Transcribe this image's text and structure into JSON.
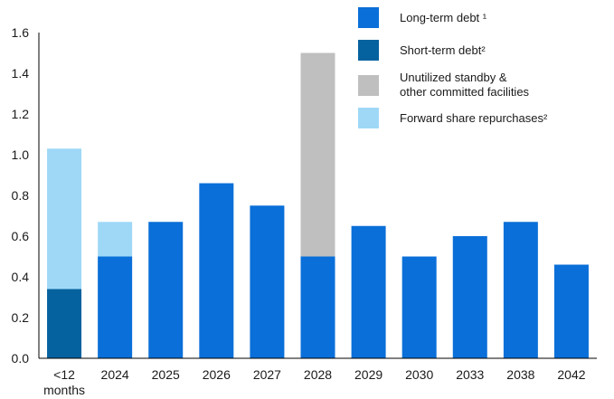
{
  "chart_data": {
    "type": "bar",
    "stacked": true,
    "categories": [
      "<12\nmonths",
      "2024",
      "2025",
      "2026",
      "2027",
      "2028",
      "2029",
      "2030",
      "2033",
      "2038",
      "2042"
    ],
    "series": [
      {
        "name": "Long-term debt ¹",
        "color": "#0a6fd8",
        "values": [
          0,
          0.5,
          0.67,
          0.86,
          0.75,
          0.5,
          0.65,
          0.5,
          0.6,
          0.67,
          0.46
        ]
      },
      {
        "name": "Short-term debt²",
        "color": "#06629f",
        "values": [
          0.34,
          0,
          0,
          0,
          0,
          0,
          0,
          0,
          0,
          0,
          0
        ]
      },
      {
        "name": "Unutilized standby &\nother committed facilities",
        "color": "#bfbfbf",
        "values": [
          0,
          0,
          0,
          0,
          0,
          1.0,
          0,
          0,
          0,
          0,
          0
        ]
      },
      {
        "name": "Forward share repurchases²",
        "color": "#9fd8f7",
        "values": [
          0.69,
          0.17,
          0,
          0,
          0,
          0,
          0,
          0,
          0,
          0,
          0
        ]
      }
    ],
    "ylim": [
      0,
      1.6
    ],
    "yticks": [
      "0.0",
      "0.2",
      "0.4",
      "0.6",
      "0.8",
      "1.0",
      "1.2",
      "1.4",
      "1.6"
    ],
    "ytick_values": [
      0,
      0.2,
      0.4,
      0.6,
      0.8,
      1.0,
      1.2,
      1.4,
      1.6
    ],
    "grid": false,
    "legend_position": "top-right",
    "title": "",
    "xlabel": "",
    "ylabel": ""
  }
}
